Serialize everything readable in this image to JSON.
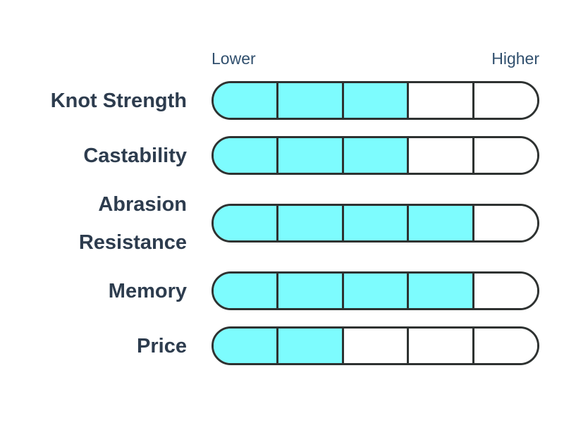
{
  "chart_data": {
    "type": "bar",
    "orientation": "horizontal",
    "title": "",
    "categories": [
      "Knot Strength",
      "Castability",
      "Abrasion Resistance",
      "Memory",
      "Price"
    ],
    "values": [
      3,
      3,
      4,
      4,
      2
    ],
    "scale_max": 5,
    "segments_per_bar": 5,
    "axis_labels": {
      "low": "Lower",
      "high": "Higher"
    },
    "legend": "none",
    "grid": "off",
    "colors": {
      "fill": "#7dfcfe",
      "empty": "#ffffff",
      "outline": "#2e3231",
      "category_text": "#2d3c4e",
      "axis_text": "#31506e"
    }
  }
}
